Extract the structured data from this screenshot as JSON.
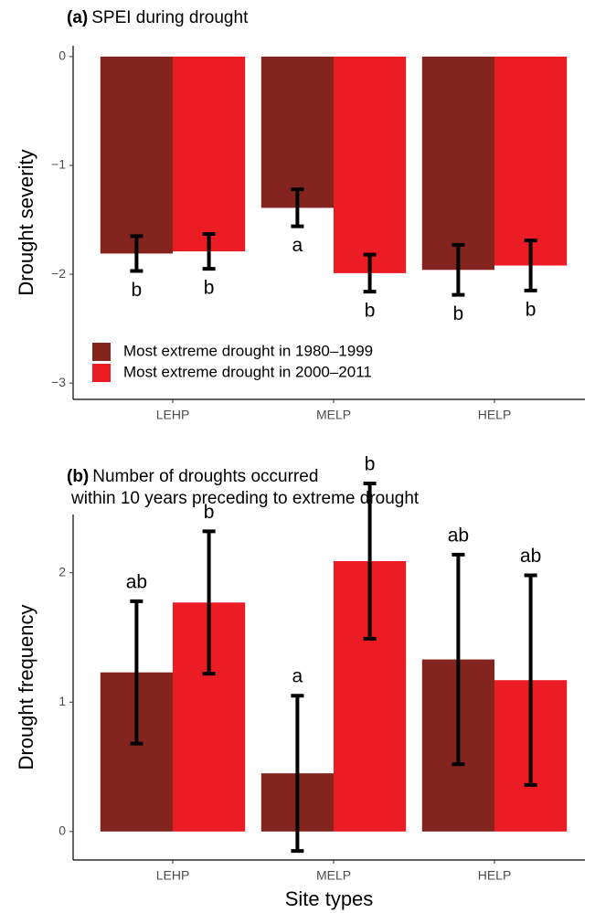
{
  "chart_data": [
    {
      "type": "bar",
      "tag": "(a)",
      "title": [
        "SPEI during drought"
      ],
      "ylabel": "Drought severity",
      "categories": [
        "LEHP",
        "MELP",
        "HELP"
      ],
      "series": [
        {
          "name": "Most extreme drought in 1980–1999",
          "color": "#84241e",
          "values": [
            -1.81,
            -1.39,
            -1.96
          ],
          "errors": [
            0.16,
            0.17,
            0.23
          ],
          "letters": [
            "b",
            "a",
            "b"
          ]
        },
        {
          "name": "Most extreme drought in 2000–2011",
          "color": "#ec1c24",
          "values": [
            -1.79,
            -1.99,
            -1.92
          ],
          "errors": [
            0.16,
            0.17,
            0.23
          ],
          "letters": [
            "b",
            "b",
            "b"
          ]
        }
      ],
      "ylim": [
        -3.15,
        0.1
      ],
      "yticks": [
        0,
        {
          "value": -1,
          "label": "−1"
        },
        {
          "value": -2,
          "label": "−2"
        },
        {
          "value": -3,
          "label": "−3"
        }
      ],
      "legend": "bottom-left"
    },
    {
      "type": "bar",
      "tag": "(b)",
      "title": [
        "Number of droughts occurred",
        "within 10 years preceding to extreme drought"
      ],
      "ylabel": "Drought frequency",
      "xlabel": "Site types",
      "categories": [
        "LEHP",
        "MELP",
        "HELP"
      ],
      "series": [
        {
          "color": "#84241e",
          "values": [
            1.23,
            0.45,
            1.33
          ],
          "errors": [
            0.55,
            0.6,
            0.81
          ],
          "letters": [
            "ab",
            "a",
            "ab"
          ]
        },
        {
          "color": "#ec1c24",
          "values": [
            1.77,
            2.09,
            1.17
          ],
          "errors": [
            0.55,
            0.6,
            0.81
          ],
          "letters": [
            "b",
            "b",
            "ab"
          ]
        }
      ],
      "ylim": [
        -0.22,
        2.45
      ],
      "yticks": [
        0,
        1,
        2
      ]
    }
  ]
}
